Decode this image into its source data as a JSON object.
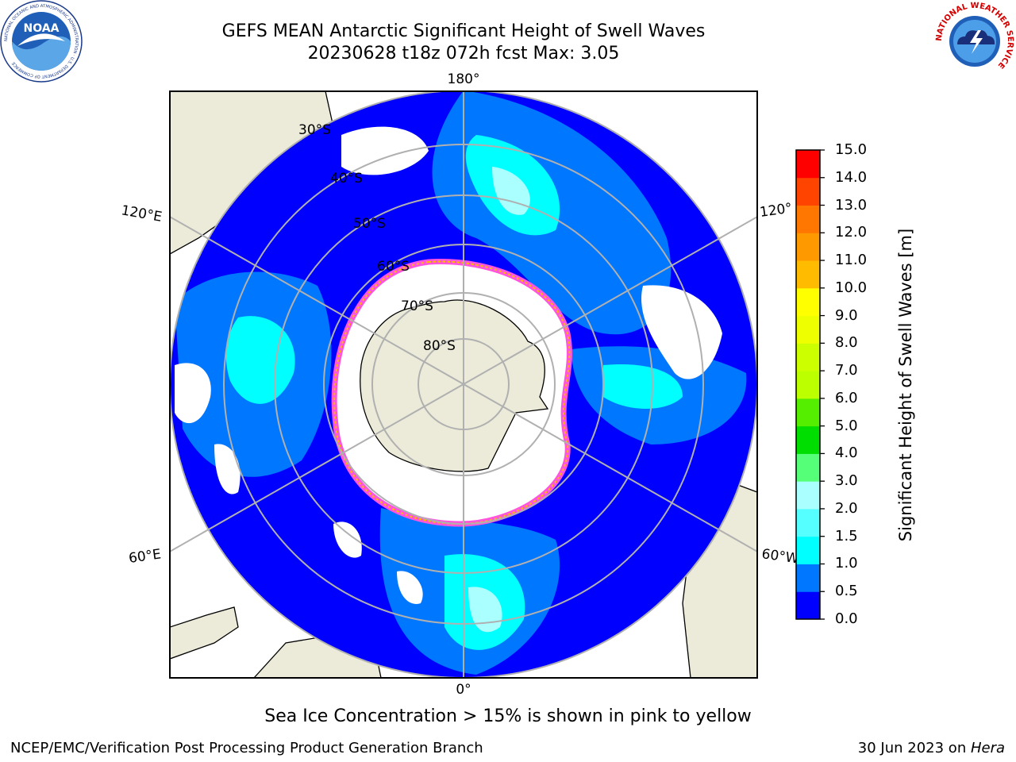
{
  "title": {
    "line1": "GEFS MEAN Antarctic Significant Height of Swell Waves",
    "line2": "20230628 t18z 072h fcst   Max: 3.05"
  },
  "map": {
    "projection": "south-polar-stereographic",
    "longitude_labels": [
      "180°",
      "120°E",
      "120°",
      "60°E",
      "60°W",
      "0°"
    ],
    "latitude_labels": [
      "30°S",
      "40°S",
      "50°S",
      "60°S",
      "70°S",
      "80°S"
    ],
    "colors": {
      "land": "#ecebd9",
      "sea_ice": "#ffffff",
      "ice_edge": "#ff55dd",
      "grid": "#b0b0b0",
      "coast": "#000000"
    }
  },
  "colorbar": {
    "label": "Significant Height of Swell Waves [m]",
    "ticks": [
      "15.0",
      "14.0",
      "13.0",
      "12.0",
      "11.0",
      "10.0",
      "9.0",
      "8.0",
      "7.0",
      "6.0",
      "5.0",
      "4.0",
      "3.0",
      "2.0",
      "1.5",
      "1.0",
      "0.5",
      "0.0"
    ],
    "bands": [
      {
        "from": 0.0,
        "to": 0.5,
        "color": "#0000ff"
      },
      {
        "from": 0.5,
        "to": 1.0,
        "color": "#0077ff"
      },
      {
        "from": 1.0,
        "to": 1.5,
        "color": "#00ffff"
      },
      {
        "from": 1.5,
        "to": 2.0,
        "color": "#55ffff"
      },
      {
        "from": 2.0,
        "to": 3.0,
        "color": "#aaffff"
      },
      {
        "from": 3.0,
        "to": 4.0,
        "color": "#55ff77"
      },
      {
        "from": 4.0,
        "to": 5.0,
        "color": "#00dd00"
      },
      {
        "from": 5.0,
        "to": 6.0,
        "color": "#55ee00"
      },
      {
        "from": 6.0,
        "to": 7.0,
        "color": "#bbff00"
      },
      {
        "from": 7.0,
        "to": 8.0,
        "color": "#ccff00"
      },
      {
        "from": 8.0,
        "to": 9.0,
        "color": "#eeff00"
      },
      {
        "from": 9.0,
        "to": 10.0,
        "color": "#ffff00"
      },
      {
        "from": 10.0,
        "to": 11.0,
        "color": "#ffbb00"
      },
      {
        "from": 11.0,
        "to": 12.0,
        "color": "#ff9900"
      },
      {
        "from": 12.0,
        "to": 13.0,
        "color": "#ff7700"
      },
      {
        "from": 13.0,
        "to": 14.0,
        "color": "#ff4400"
      },
      {
        "from": 14.0,
        "to": 15.0,
        "color": "#ff0000"
      }
    ]
  },
  "footnote": "Sea Ice Concentration > 15% is shown in pink to yellow",
  "credits": {
    "left": "NCEP/EMC/Verification Post Processing Product Generation Branch",
    "right_prefix": "30 Jun 2023 on ",
    "right_machine": "Hera"
  },
  "logos": {
    "noaa": {
      "text": "NOAA",
      "ring": "NATIONAL OCEANIC AND ATMOSPHERIC ADMINISTRATION · U.S. DEPARTMENT OF COMMERCE"
    },
    "nws": {
      "ring": "NATIONAL WEATHER SERVICE"
    }
  }
}
